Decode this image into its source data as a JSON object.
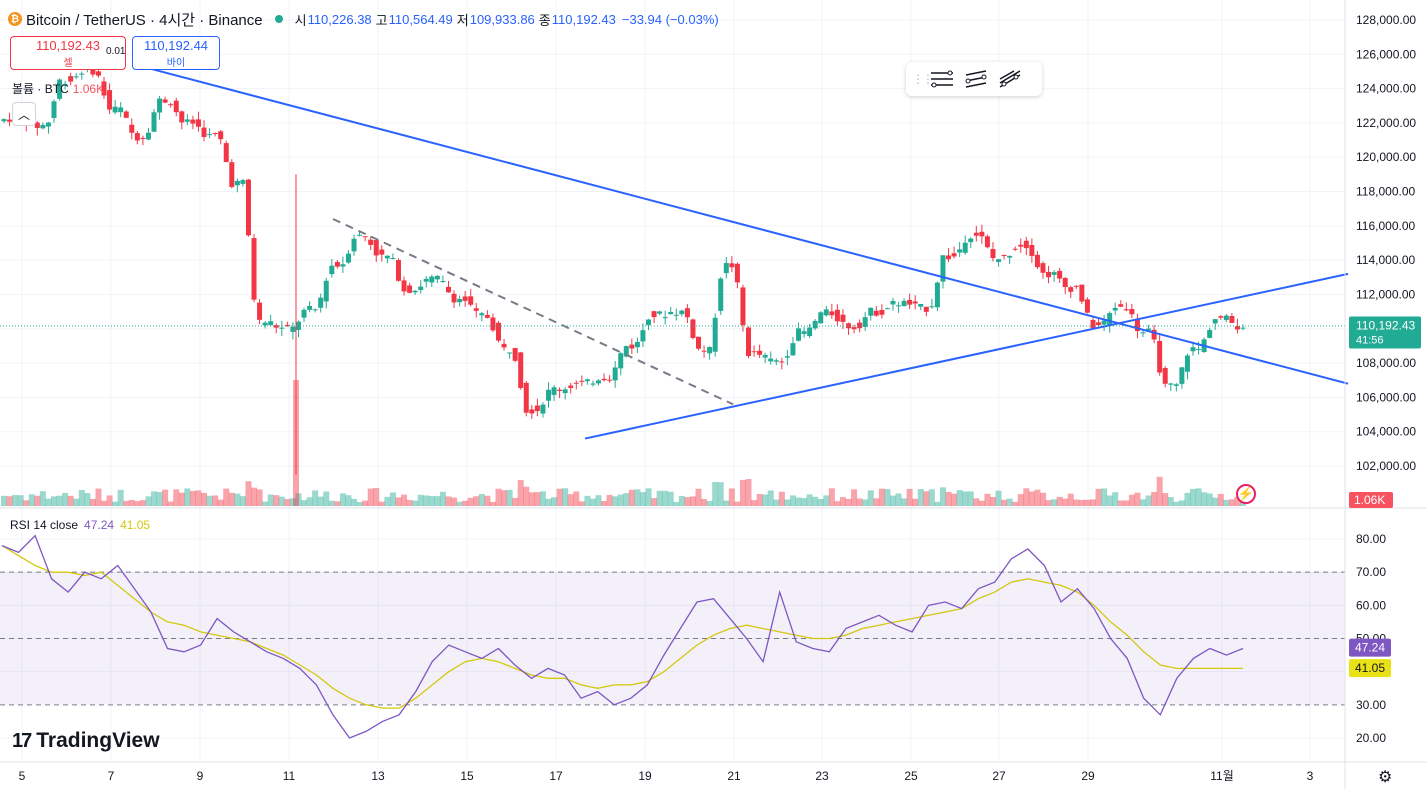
{
  "header": {
    "coin_glyph": "₿",
    "title": "Bitcoin / TetherUS · 4시간 · Binance",
    "open_label": "시",
    "open": "110,226.38",
    "high_label": "고",
    "high": "110,564.49",
    "low_label": "저",
    "low": "109,933.86",
    "close_label": "종",
    "close": "110,192.43",
    "change": "−33.94 (−0.03%)"
  },
  "trade": {
    "sell_price": "110,192.43",
    "sell_label": "셀",
    "spread": "0.01",
    "buy_price": "110,192.44",
    "buy_label": "바이"
  },
  "volume_legend": {
    "label": "볼륨 · BTC",
    "value": "1.06K"
  },
  "rsi_legend": {
    "label": "RSI 14 close",
    "rsi": "47.24",
    "ma": "41.05"
  },
  "branding": {
    "name": "TradingView"
  },
  "drawing_toolbar": {
    "tools": [
      "parallel-channel-icon",
      "regression-trend-icon",
      "pitchfork-icon"
    ]
  },
  "icons": {
    "collapse": "chevron-up-icon",
    "alert": "lightning-icon",
    "settings": "gear-icon"
  },
  "colors": {
    "up": "#22ab94",
    "down": "#f23645",
    "trendline": "#2962ff",
    "rsi": "#7e57c2",
    "rsi_ma": "#d4c80f"
  },
  "chart_data": {
    "type": "candlestick",
    "price_axis": {
      "ticks": [
        102000,
        104000,
        106000,
        108000,
        110000,
        112000,
        114000,
        116000,
        118000,
        120000,
        122000,
        124000,
        126000,
        128000
      ],
      "tick_labels": [
        "102,000.00",
        "104,000.00",
        "106,000.00",
        "108,000.00",
        "110,000.00",
        "112,000.00",
        "114,000.00",
        "116,000.00",
        "118,000.00",
        "120,000.00",
        "122,000.00",
        "124,000.00",
        "126,000.00",
        "128,000.00"
      ],
      "range": [
        100300,
        128800
      ]
    },
    "time_axis": {
      "labels": [
        "5",
        "7",
        "9",
        "11",
        "13",
        "15",
        "17",
        "19",
        "21",
        "23",
        "25",
        "27",
        "29",
        "11월",
        "3"
      ]
    },
    "last_price": {
      "value": 110192.43,
      "label": "110,192.43",
      "countdown": "41:56"
    },
    "volume_badge": "1.06K",
    "candles_approx": [
      {
        "x": "5",
        "o": 122100,
        "c": 122300
      },
      {
        "x": "5",
        "o": 122300,
        "c": 121800
      },
      {
        "x": "6",
        "o": 121900,
        "c": 124500
      },
      {
        "x": "7",
        "o": 124500,
        "c": 125200
      },
      {
        "x": "8",
        "o": 125000,
        "c": 122800
      },
      {
        "x": "8",
        "o": 122800,
        "c": 121200
      },
      {
        "x": "9",
        "o": 121200,
        "c": 123300
      },
      {
        "x": "9",
        "o": 123300,
        "c": 122000
      },
      {
        "x": "10",
        "o": 122000,
        "c": 121200
      },
      {
        "x": "10",
        "o": 121300,
        "c": 118500
      },
      {
        "x": "11",
        "o": 118500,
        "c": 110400
      },
      {
        "x": "11",
        "o": 110400,
        "c": 110000
      },
      {
        "x": "12",
        "o": 110000,
        "c": 111100
      },
      {
        "x": "13",
        "o": 111100,
        "c": 113700
      },
      {
        "x": "13",
        "o": 113700,
        "c": 115400
      },
      {
        "x": "14",
        "o": 115400,
        "c": 114200
      },
      {
        "x": "14",
        "o": 114200,
        "c": 112300
      },
      {
        "x": "15",
        "o": 112300,
        "c": 112900
      },
      {
        "x": "16",
        "o": 112900,
        "c": 111800
      },
      {
        "x": "16",
        "o": 111700,
        "c": 110800
      },
      {
        "x": "17",
        "o": 110700,
        "c": 108800
      },
      {
        "x": "17",
        "o": 108800,
        "c": 105300
      },
      {
        "x": "18",
        "o": 105300,
        "c": 106500
      },
      {
        "x": "19",
        "o": 106500,
        "c": 106800
      },
      {
        "x": "19",
        "o": 106800,
        "c": 107200
      },
      {
        "x": "20",
        "o": 107200,
        "c": 109000
      },
      {
        "x": "20",
        "o": 109000,
        "c": 110800
      },
      {
        "x": "21",
        "o": 110800,
        "c": 111000
      },
      {
        "x": "21",
        "o": 111000,
        "c": 108800
      },
      {
        "x": "22",
        "o": 108700,
        "c": 113700
      },
      {
        "x": "22",
        "o": 113700,
        "c": 108600
      },
      {
        "x": "23",
        "o": 108500,
        "c": 108100
      },
      {
        "x": "23",
        "o": 108100,
        "c": 109800
      },
      {
        "x": "24",
        "o": 109800,
        "c": 110900
      },
      {
        "x": "24",
        "o": 110900,
        "c": 110200
      },
      {
        "x": "25",
        "o": 110100,
        "c": 111000
      },
      {
        "x": "26",
        "o": 111000,
        "c": 111500
      },
      {
        "x": "26",
        "o": 111500,
        "c": 111200
      },
      {
        "x": "27",
        "o": 111200,
        "c": 114200
      },
      {
        "x": "27",
        "o": 114200,
        "c": 115500
      },
      {
        "x": "28",
        "o": 115500,
        "c": 114100
      },
      {
        "x": "28",
        "o": 114100,
        "c": 114900
      },
      {
        "x": "29",
        "o": 114900,
        "c": 113200
      },
      {
        "x": "29",
        "o": 113200,
        "c": 112400
      },
      {
        "x": "30",
        "o": 112400,
        "c": 110200
      },
      {
        "x": "30",
        "o": 110200,
        "c": 111300
      },
      {
        "x": "30",
        "o": 111300,
        "c": 109800
      },
      {
        "x": "31",
        "o": 109800,
        "c": 106600
      },
      {
        "x": "31",
        "o": 106600,
        "c": 108800
      },
      {
        "x": "11월",
        "o": 108800,
        "c": 110600
      },
      {
        "x": "11월",
        "o": 110600,
        "c": 110192
      }
    ],
    "rsi": {
      "ticks": [
        20,
        30,
        40,
        50,
        60,
        70,
        80
      ],
      "tick_labels": [
        "20.00",
        "30.00",
        "50.00",
        "60.00",
        "70.00",
        "80.00"
      ],
      "overbought": 70,
      "oversold": 30,
      "mid": 50,
      "range": [
        17,
        84
      ],
      "rsi_badge": "47.24",
      "ma_badge": "41.05",
      "series_approx": [
        78,
        76,
        81,
        68,
        64,
        70,
        68,
        72,
        65,
        58,
        47,
        46,
        48,
        56,
        52,
        49,
        46,
        44,
        41,
        36,
        27,
        20,
        22,
        25,
        27,
        34,
        43,
        48,
        46,
        44,
        47,
        42,
        38,
        41,
        39,
        32,
        34,
        30,
        32,
        36,
        45,
        53,
        61,
        62,
        56,
        50,
        43,
        64,
        49,
        47,
        46,
        53,
        55,
        57,
        54,
        52,
        60,
        61,
        59,
        65,
        67,
        74,
        77,
        72,
        61,
        65,
        59,
        50,
        44,
        32,
        27,
        38,
        44,
        47,
        45,
        47
      ],
      "ma_series_approx": [
        78,
        75,
        72,
        70,
        70,
        69,
        70,
        66,
        62,
        58,
        55,
        54,
        52,
        51,
        50,
        49,
        47,
        45,
        42,
        39,
        35,
        32,
        30,
        29,
        29,
        32,
        36,
        40,
        43,
        44,
        43,
        41,
        39,
        38,
        38,
        36,
        35,
        36,
        36,
        37,
        40,
        44,
        48,
        51,
        53,
        54,
        53,
        52,
        51,
        50,
        50,
        51,
        53,
        54,
        55,
        56,
        57,
        58,
        59,
        62,
        64,
        67,
        68,
        67,
        66,
        64,
        60,
        55,
        51,
        46,
        42,
        41,
        41,
        41,
        41,
        41
      ]
    },
    "trendlines": [
      {
        "from": {
          "x": "8",
          "y": 125200
        },
        "to": {
          "x": "3",
          "y": 106800
        },
        "style": "solid"
      },
      {
        "from": {
          "x": "17",
          "y": 103600
        },
        "to": {
          "x": "3",
          "y": 113200
        },
        "style": "solid"
      },
      {
        "from": {
          "x": "12",
          "y": 116400
        },
        "to": {
          "x": "21",
          "y": 105600
        },
        "style": "dashed"
      }
    ]
  }
}
